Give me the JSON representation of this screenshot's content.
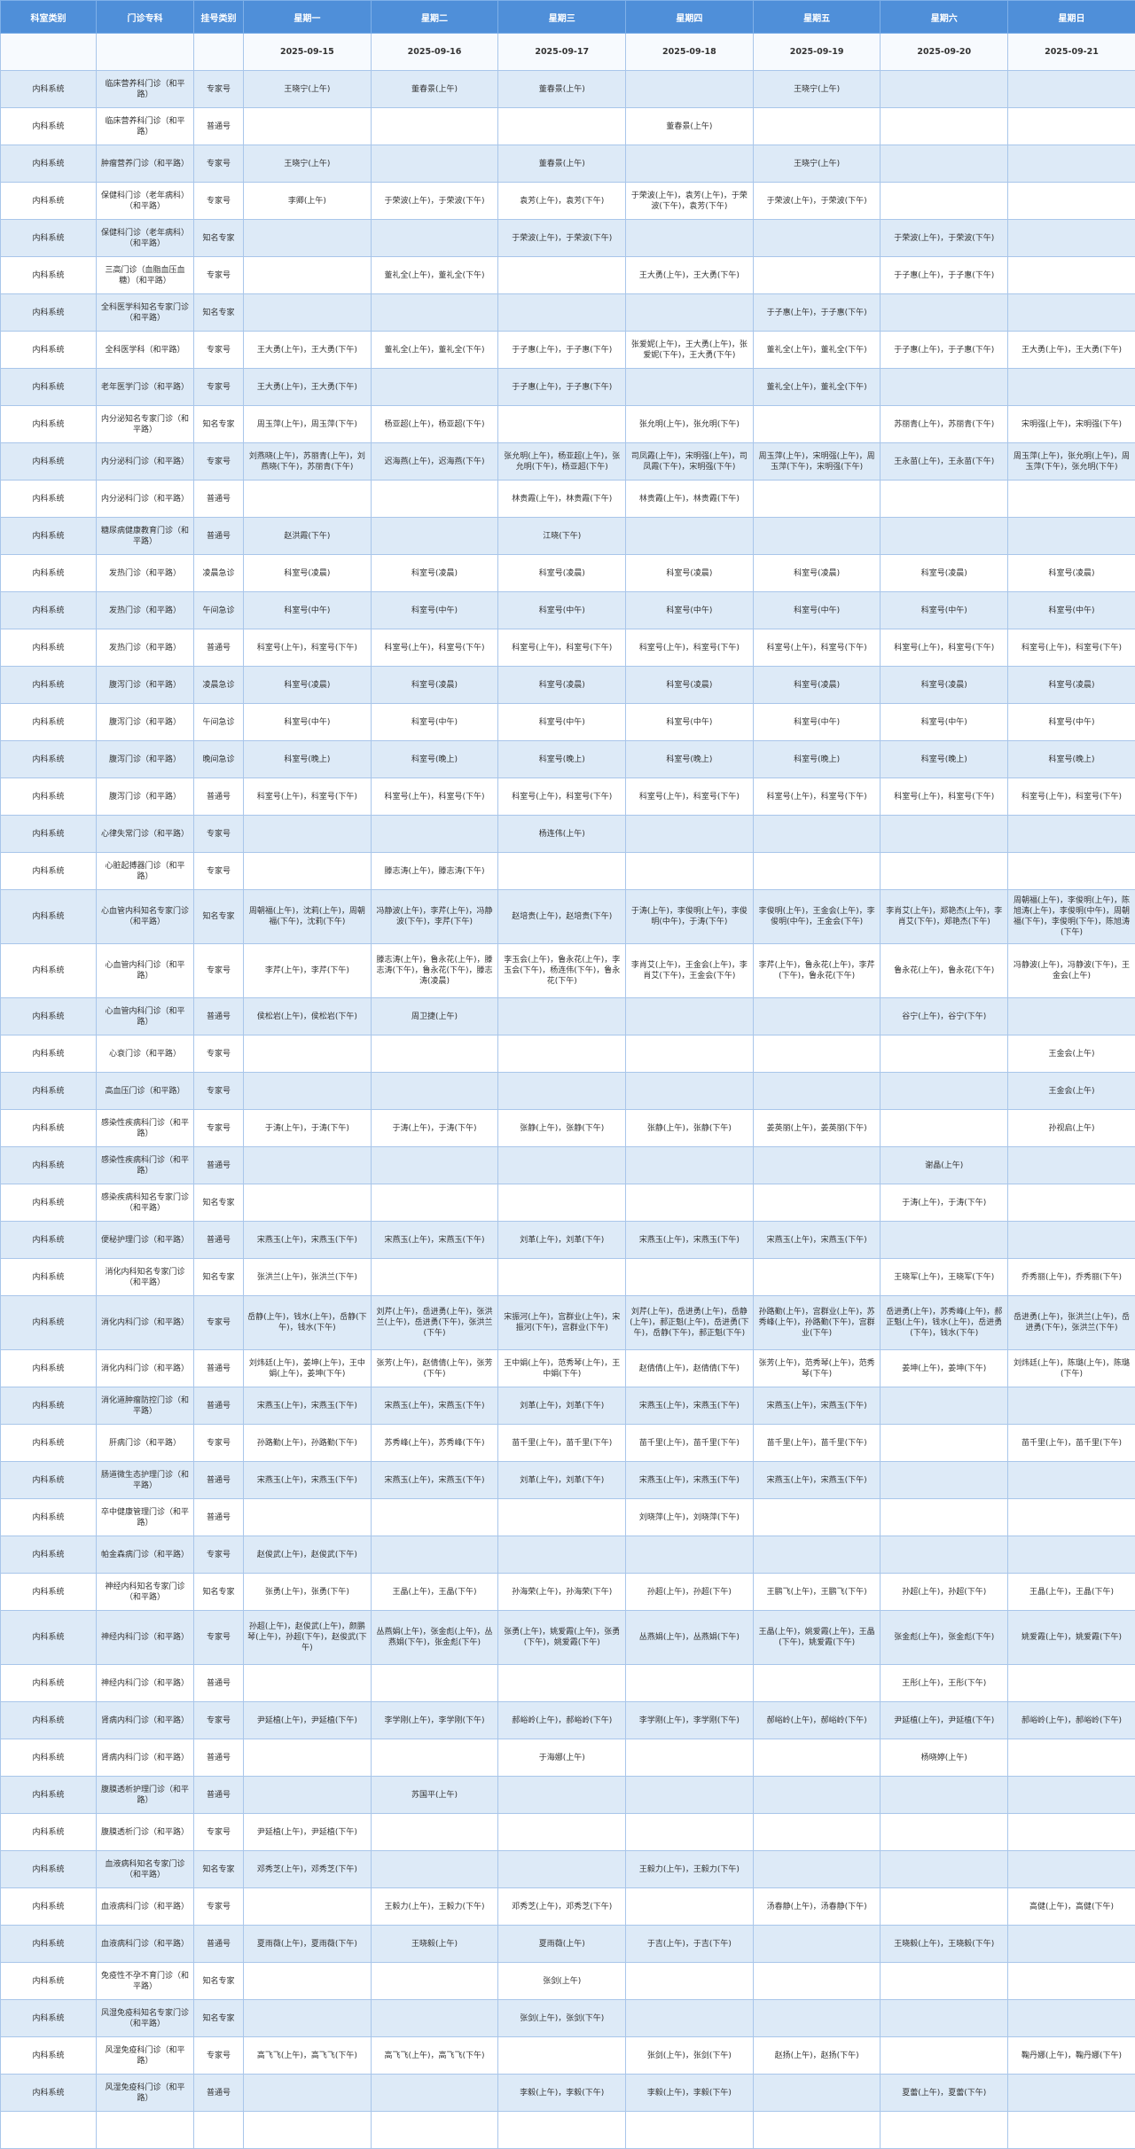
{
  "headers": [
    "科室类别",
    "门诊专科",
    "挂号类别",
    "星期一",
    "星期二",
    "星期三",
    "星期四",
    "星期五",
    "星期六",
    "星期日"
  ],
  "dates": [
    "2025-09-15",
    "2025-09-16",
    "2025-09-17",
    "2025-09-18",
    "2025-09-19",
    "2025-09-20",
    "2025-09-21"
  ],
  "rows": [
    {
      "c": [
        "内科系统",
        "临床营养科门诊（和平路）",
        "专家号",
        "王晓宁(上午)",
        "董春景(上午)",
        "董春景(上午)",
        "",
        "王晓宁(上午)",
        "",
        ""
      ]
    },
    {
      "c": [
        "内科系统",
        "临床营养科门诊（和平路）",
        "普通号",
        "",
        "",
        "",
        "董春景(上午)",
        "",
        "",
        ""
      ]
    },
    {
      "c": [
        "内科系统",
        "肿瘤营养门诊（和平路）",
        "专家号",
        "王晓宁(上午)",
        "",
        "董春景(上午)",
        "",
        "王晓宁(上午)",
        "",
        ""
      ]
    },
    {
      "c": [
        "内科系统",
        "保健科门诊（老年病科）（和平路）",
        "专家号",
        "李卿(上午)",
        "于荣波(上午)，于荣波(下午)",
        "袁芳(上午)，袁芳(下午)",
        "于荣波(上午)，袁芳(上午)，于荣波(下午)，袁芳(下午)",
        "于荣波(上午)，于荣波(下午)",
        "",
        ""
      ]
    },
    {
      "c": [
        "内科系统",
        "保健科门诊（老年病科）（和平路）",
        "知名专家",
        "",
        "",
        "于荣波(上午)，于荣波(下午)",
        "",
        "",
        "于荣波(上午)，于荣波(下午)",
        ""
      ]
    },
    {
      "c": [
        "内科系统",
        "三高门诊（血脂血压血糖）（和平路）",
        "专家号",
        "",
        "董礼全(上午)，董礼全(下午)",
        "",
        "王大勇(上午)，王大勇(下午)",
        "",
        "于子惠(上午)，于子惠(下午)",
        ""
      ]
    },
    {
      "c": [
        "内科系统",
        "全科医学科知名专家门诊（和平路）",
        "知名专家",
        "",
        "",
        "",
        "",
        "于子惠(上午)，于子惠(下午)",
        "",
        ""
      ]
    },
    {
      "c": [
        "内科系统",
        "全科医学科（和平路）",
        "专家号",
        "王大勇(上午)，王大勇(下午)",
        "董礼全(上午)，董礼全(下午)",
        "于子惠(上午)，于子惠(下午)",
        "张爱妮(上午)，王大勇(上午)，张爱妮(下午)，王大勇(下午)",
        "董礼全(上午)，董礼全(下午)",
        "于子惠(上午)，于子惠(下午)",
        "王大勇(上午)，王大勇(下午)"
      ]
    },
    {
      "c": [
        "内科系统",
        "老年医学门诊（和平路）",
        "专家号",
        "王大勇(上午)，王大勇(下午)",
        "",
        "于子惠(上午)，于子惠(下午)",
        "",
        "董礼全(上午)，董礼全(下午)",
        "",
        ""
      ]
    },
    {
      "c": [
        "内科系统",
        "内分泌知名专家门诊（和平路）",
        "知名专家",
        "周玉萍(上午)，周玉萍(下午)",
        "杨亚超(上午)，杨亚超(下午)",
        "",
        "张允明(上午)，张允明(下午)",
        "",
        "苏丽青(上午)，苏丽青(下午)",
        "宋明强(上午)，宋明强(下午)"
      ]
    },
    {
      "c": [
        "内科系统",
        "内分泌科门诊（和平路）",
        "专家号",
        "刘燕晓(上午)，苏丽青(上午)，刘燕晓(下午)，苏丽青(下午)",
        "迟海燕(上午)，迟海燕(下午)",
        "张允明(上午)，杨亚超(上午)，张允明(下午)，杨亚超(下午)",
        "司凤霞(上午)，宋明强(上午)，司凤霞(下午)，宋明强(下午)",
        "周玉萍(上午)，宋明强(上午)，周玉萍(下午)，宋明强(下午)",
        "王永苗(上午)，王永苗(下午)",
        "周玉萍(上午)，张允明(上午)，周玉萍(下午)，张允明(下午)"
      ]
    },
    {
      "c": [
        "内科系统",
        "内分泌科门诊（和平路）",
        "普通号",
        "",
        "",
        "林贵霞(上午)，林贵霞(下午)",
        "林贵霞(上午)，林贵霞(下午)",
        "",
        "",
        ""
      ]
    },
    {
      "c": [
        "内科系统",
        "糖尿病健康教育门诊（和平路）",
        "普通号",
        "赵洪霞(下午)",
        "",
        "江晓(下午)",
        "",
        "",
        "",
        ""
      ]
    },
    {
      "c": [
        "内科系统",
        "发热门诊（和平路）",
        "凌晨急诊",
        "科室号(凌晨)",
        "科室号(凌晨)",
        "科室号(凌晨)",
        "科室号(凌晨)",
        "科室号(凌晨)",
        "科室号(凌晨)",
        "科室号(凌晨)"
      ]
    },
    {
      "c": [
        "内科系统",
        "发热门诊（和平路）",
        "午间急诊",
        "科室号(中午)",
        "科室号(中午)",
        "科室号(中午)",
        "科室号(中午)",
        "科室号(中午)",
        "科室号(中午)",
        "科室号(中午)"
      ]
    },
    {
      "c": [
        "内科系统",
        "发热门诊（和平路）",
        "普通号",
        "科室号(上午)，科室号(下午)",
        "科室号(上午)，科室号(下午)",
        "科室号(上午)，科室号(下午)",
        "科室号(上午)，科室号(下午)",
        "科室号(上午)，科室号(下午)",
        "科室号(上午)，科室号(下午)",
        "科室号(上午)，科室号(下午)"
      ]
    },
    {
      "c": [
        "内科系统",
        "腹泻门诊（和平路）",
        "凌晨急诊",
        "科室号(凌晨)",
        "科室号(凌晨)",
        "科室号(凌晨)",
        "科室号(凌晨)",
        "科室号(凌晨)",
        "科室号(凌晨)",
        "科室号(凌晨)"
      ]
    },
    {
      "c": [
        "内科系统",
        "腹泻门诊（和平路）",
        "午间急诊",
        "科室号(中午)",
        "科室号(中午)",
        "科室号(中午)",
        "科室号(中午)",
        "科室号(中午)",
        "科室号(中午)",
        "科室号(中午)"
      ]
    },
    {
      "c": [
        "内科系统",
        "腹泻门诊（和平路）",
        "晚间急诊",
        "科室号(晚上)",
        "科室号(晚上)",
        "科室号(晚上)",
        "科室号(晚上)",
        "科室号(晚上)",
        "科室号(晚上)",
        "科室号(晚上)"
      ]
    },
    {
      "c": [
        "内科系统",
        "腹泻门诊（和平路）",
        "普通号",
        "科室号(上午)，科室号(下午)",
        "科室号(上午)，科室号(下午)",
        "科室号(上午)，科室号(下午)",
        "科室号(上午)，科室号(下午)",
        "科室号(上午)，科室号(下午)",
        "科室号(上午)，科室号(下午)",
        "科室号(上午)，科室号(下午)"
      ]
    },
    {
      "c": [
        "内科系统",
        "心律失常门诊（和平路）",
        "专家号",
        "",
        "",
        "杨连伟(上午)",
        "",
        "",
        "",
        ""
      ]
    },
    {
      "c": [
        "内科系统",
        "心脏起搏器门诊（和平路）",
        "专家号",
        "",
        "滕志涛(上午)，滕志涛(下午)",
        "",
        "",
        "",
        "",
        ""
      ]
    },
    {
      "tall": true,
      "c": [
        "内科系统",
        "心血管内科知名专家门诊（和平路）",
        "知名专家",
        "周朝福(上午)，沈莉(上午)，周朝福(下午)，沈莉(下午)",
        "冯静波(上午)，李芹(上午)，冯静波(下午)，李芹(下午)",
        "赵培贵(上午)，赵培贵(下午)",
        "于涛(上午)，李俊明(上午)，李俊明(中午)，于涛(下午)",
        "李俊明(上午)，王金会(上午)，李俊明(中午)，王金会(下午)",
        "李肖艾(上午)，郑艳杰(上午)，李肖艾(下午)，郑艳杰(下午)",
        "周朝福(上午)，李俊明(上午)，陈旭涛(上午)，李俊明(中午)，周朝福(下午)，李俊明(下午)，陈旭涛(下午)"
      ]
    },
    {
      "tall": true,
      "c": [
        "内科系统",
        "心血管内科门诊（和平路）",
        "专家号",
        "李芹(上午)，李芹(下午)",
        "滕志涛(上午)，鲁永花(上午)，滕志涛(下午)，鲁永花(下午)，滕志涛(凌晨)",
        "李玉会(上午)，鲁永花(上午)，李玉会(下午)，杨连伟(下午)，鲁永花(下午)",
        "李肖艾(上午)，王金会(上午)，李肖艾(下午)，王金会(下午)",
        "李芹(上午)，鲁永花(上午)，李芹(下午)，鲁永花(下午)",
        "鲁永花(上午)，鲁永花(下午)",
        "冯静波(上午)，冯静波(下午)，王金会(上午)"
      ]
    },
    {
      "c": [
        "内科系统",
        "心血管内科门诊（和平路）",
        "普通号",
        "侯松岩(上午)，侯松岩(下午)",
        "周卫捷(上午)",
        "",
        "",
        "",
        "谷宁(上午)，谷宁(下午)",
        ""
      ]
    },
    {
      "c": [
        "内科系统",
        "心衰门诊（和平路）",
        "专家号",
        "",
        "",
        "",
        "",
        "",
        "",
        "王金会(上午)"
      ]
    },
    {
      "c": [
        "内科系统",
        "高血压门诊（和平路）",
        "专家号",
        "",
        "",
        "",
        "",
        "",
        "",
        "王金会(上午)"
      ]
    },
    {
      "c": [
        "内科系统",
        "感染性疾病科门诊（和平路）",
        "专家号",
        "于涛(上午)，于涛(下午)",
        "于涛(上午)，于涛(下午)",
        "张静(上午)，张静(下午)",
        "张静(上午)，张静(下午)",
        "姜英丽(上午)，姜英丽(下午)",
        "",
        "孙视启(上午)"
      ]
    },
    {
      "c": [
        "内科系统",
        "感染性疾病科门诊（和平路）",
        "普通号",
        "",
        "",
        "",
        "",
        "",
        "谢晶(上午)",
        ""
      ]
    },
    {
      "c": [
        "内科系统",
        "感染疾病科知名专家门诊（和平路）",
        "知名专家",
        "",
        "",
        "",
        "",
        "",
        "于涛(上午)，于涛(下午)",
        ""
      ]
    },
    {
      "c": [
        "内科系统",
        "便秘护理门诊（和平路）",
        "普通号",
        "宋燕玉(上午)，宋燕玉(下午)",
        "宋燕玉(上午)，宋燕玉(下午)",
        "刘革(上午)，刘革(下午)",
        "宋燕玉(上午)，宋燕玉(下午)",
        "宋燕玉(上午)，宋燕玉(下午)",
        "",
        ""
      ]
    },
    {
      "c": [
        "内科系统",
        "消化内科知名专家门诊（和平路）",
        "知名专家",
        "张洪兰(上午)，张洪兰(下午)",
        "",
        "",
        "",
        "",
        "王晓军(上午)，王晓军(下午)",
        "乔秀丽(上午)，乔秀丽(下午)"
      ]
    },
    {
      "tall": true,
      "c": [
        "内科系统",
        "消化内科门诊（和平路）",
        "专家号",
        "岳静(上午)，钱水(上午)，岳静(下午)，钱水(下午)",
        "刘芹(上午)，岳进勇(上午)，张洪兰(上午)，岳进勇(下午)，张洪兰(下午)",
        "宋振河(上午)，宫群业(上午)，宋振河(下午)，宫群业(下午)",
        "刘芹(上午)，岳进勇(上午)，岳静(上午)，郝正魁(上午)，岳进勇(下午)，岳静(下午)，郝正魁(下午)",
        "孙路勤(上午)，宫群业(上午)，苏秀峰(上午)，孙路勤(下午)，宫群业(下午)",
        "岳进勇(上午)，苏秀峰(上午)，郝正魁(上午)，钱水(上午)，岳进勇(下午)，钱水(下午)",
        "岳进勇(上午)，张洪兰(上午)，岳进勇(下午)，张洪兰(下午)"
      ]
    },
    {
      "c": [
        "内科系统",
        "消化内科门诊（和平路）",
        "普通号",
        "刘炜廷(上午)，姜坤(上午)，王中娟(上午)，姜坤(下午)",
        "张芳(上午)，赵倩倩(上午)，张芳(下午)",
        "王中娟(上午)，范秀琴(上午)，王中娟(下午)",
        "赵倩倩(上午)，赵倩倩(下午)",
        "张芳(上午)，范秀琴(上午)，范秀琴(下午)",
        "姜坤(上午)，姜坤(下午)",
        "刘炜廷(上午)，陈璐(上午)，陈璐(下午)"
      ]
    },
    {
      "c": [
        "内科系统",
        "消化道肿瘤防控门诊（和平路）",
        "普通号",
        "宋燕玉(上午)，宋燕玉(下午)",
        "宋燕玉(上午)，宋燕玉(下午)",
        "刘革(上午)，刘革(下午)",
        "宋燕玉(上午)，宋燕玉(下午)",
        "宋燕玉(上午)，宋燕玉(下午)",
        "",
        ""
      ]
    },
    {
      "c": [
        "内科系统",
        "肝病门诊（和平路）",
        "专家号",
        "孙路勤(上午)，孙路勤(下午)",
        "苏秀峰(上午)，苏秀峰(下午)",
        "苗千里(上午)，苗千里(下午)",
        "苗千里(上午)，苗千里(下午)",
        "苗千里(上午)，苗千里(下午)",
        "",
        "苗千里(上午)，苗千里(下午)"
      ]
    },
    {
      "c": [
        "内科系统",
        "肠道微生态护理门诊（和平路）",
        "普通号",
        "宋燕玉(上午)，宋燕玉(下午)",
        "宋燕玉(上午)，宋燕玉(下午)",
        "刘革(上午)，刘革(下午)",
        "宋燕玉(上午)，宋燕玉(下午)",
        "宋燕玉(上午)，宋燕玉(下午)",
        "",
        ""
      ]
    },
    {
      "c": [
        "内科系统",
        "卒中健康管理门诊（和平路）",
        "普通号",
        "",
        "",
        "",
        "刘晓萍(上午)，刘晓萍(下午)",
        "",
        "",
        ""
      ]
    },
    {
      "c": [
        "内科系统",
        "帕金森病门诊（和平路）",
        "专家号",
        "赵俊武(上午)，赵俊武(下午)",
        "",
        "",
        "",
        "",
        "",
        ""
      ]
    },
    {
      "c": [
        "内科系统",
        "神经内科知名专家门诊（和平路）",
        "知名专家",
        "张勇(上午)，张勇(下午)",
        "王晶(上午)，王晶(下午)",
        "孙海荣(上午)，孙海荣(下午)",
        "孙超(上午)，孙超(下午)",
        "王鹏飞(上午)，王鹏飞(下午)",
        "孙超(上午)，孙超(下午)",
        "王晶(上午)，王晶(下午)"
      ]
    },
    {
      "tall": true,
      "c": [
        "内科系统",
        "神经内科门诊（和平路）",
        "专家号",
        "孙超(上午)，赵俊武(上午)，颜鹏琴(上午)，孙超(下午)，赵俊武(下午)",
        "丛燕娟(上午)，张金彪(上午)，丛燕娟(下午)，张金彪(下午)",
        "张勇(上午)，姚爱霞(上午)，张勇(下午)，姚爱霞(下午)",
        "丛燕娟(上午)，丛燕娟(下午)",
        "王晶(上午)，姚爱霞(上午)，王晶(下午)，姚爱霞(下午)",
        "张金彪(上午)，张金彪(下午)",
        "姚爱霞(上午)，姚爱霞(下午)"
      ]
    },
    {
      "c": [
        "内科系统",
        "神经内科门诊（和平路）",
        "普通号",
        "",
        "",
        "",
        "",
        "",
        "王彤(上午)，王彤(下午)",
        ""
      ]
    },
    {
      "c": [
        "内科系统",
        "肾病内科门诊（和平路）",
        "专家号",
        "尹延植(上午)，尹延植(下午)",
        "李学刚(上午)，李学刚(下午)",
        "郝峪岭(上午)，郝峪岭(下午)",
        "李学刚(上午)，李学刚(下午)",
        "郝峪岭(上午)，郝峪岭(下午)",
        "尹延植(上午)，尹延植(下午)",
        "郝峪岭(上午)，郝峪岭(下午)"
      ]
    },
    {
      "c": [
        "内科系统",
        "肾病内科门诊（和平路）",
        "普通号",
        "",
        "",
        "于海娜(上午)",
        "",
        "",
        "杨晓婷(上午)",
        ""
      ]
    },
    {
      "c": [
        "内科系统",
        "腹膜透析护理门诊（和平路）",
        "普通号",
        "",
        "苏国平(上午)",
        "",
        "",
        "",
        "",
        ""
      ]
    },
    {
      "c": [
        "内科系统",
        "腹膜透析门诊（和平路）",
        "专家号",
        "尹延植(上午)，尹延植(下午)",
        "",
        "",
        "",
        "",
        "",
        ""
      ]
    },
    {
      "c": [
        "内科系统",
        "血液病科知名专家门诊（和平路）",
        "知名专家",
        "邓秀芝(上午)，邓秀芝(下午)",
        "",
        "",
        "王毅力(上午)，王毅力(下午)",
        "",
        "",
        ""
      ]
    },
    {
      "c": [
        "内科系统",
        "血液病科门诊（和平路）",
        "专家号",
        "",
        "王毅力(上午)，王毅力(下午)",
        "邓秀芝(上午)，邓秀芝(下午)",
        "",
        "汤春静(上午)，汤春静(下午)",
        "",
        "高健(上午)，高健(下午)"
      ]
    },
    {
      "c": [
        "内科系统",
        "血液病科门诊（和平路）",
        "普通号",
        "夏雨薇(上午)，夏雨薇(下午)",
        "王晓毅(上午)",
        "夏雨薇(上午)",
        "于吉(上午)，于吉(下午)",
        "",
        "王晓毅(上午)，王晓毅(下午)",
        ""
      ]
    },
    {
      "c": [
        "内科系统",
        "免疫性不孕不育门诊（和平路）",
        "知名专家",
        "",
        "",
        "张剑(上午)",
        "",
        "",
        "",
        ""
      ]
    },
    {
      "c": [
        "内科系统",
        "风湿免疫科知名专家门诊（和平路）",
        "知名专家",
        "",
        "",
        "张剑(上午)，张剑(下午)",
        "",
        "",
        "",
        ""
      ]
    },
    {
      "c": [
        "内科系统",
        "风湿免疫科门诊（和平路）",
        "专家号",
        "高飞飞(上午)，高飞飞(下午)",
        "高飞飞(上午)，高飞飞(下午)",
        "",
        "张剑(上午)，张剑(下午)",
        "赵扬(上午)，赵扬(下午)",
        "",
        "鞠丹娜(上午)，鞠丹娜(下午)"
      ]
    },
    {
      "c": [
        "内科系统",
        "风湿免疫科门诊（和平路）",
        "普通号",
        "",
        "",
        "李毅(上午)，李毅(下午)",
        "李毅(上午)，李毅(下午)",
        "",
        "夏蕾(上午)，夏蕾(下午)",
        ""
      ]
    },
    {
      "c": [
        "",
        "",
        "",
        "",
        "",
        "",
        "",
        "",
        "",
        ""
      ]
    }
  ]
}
